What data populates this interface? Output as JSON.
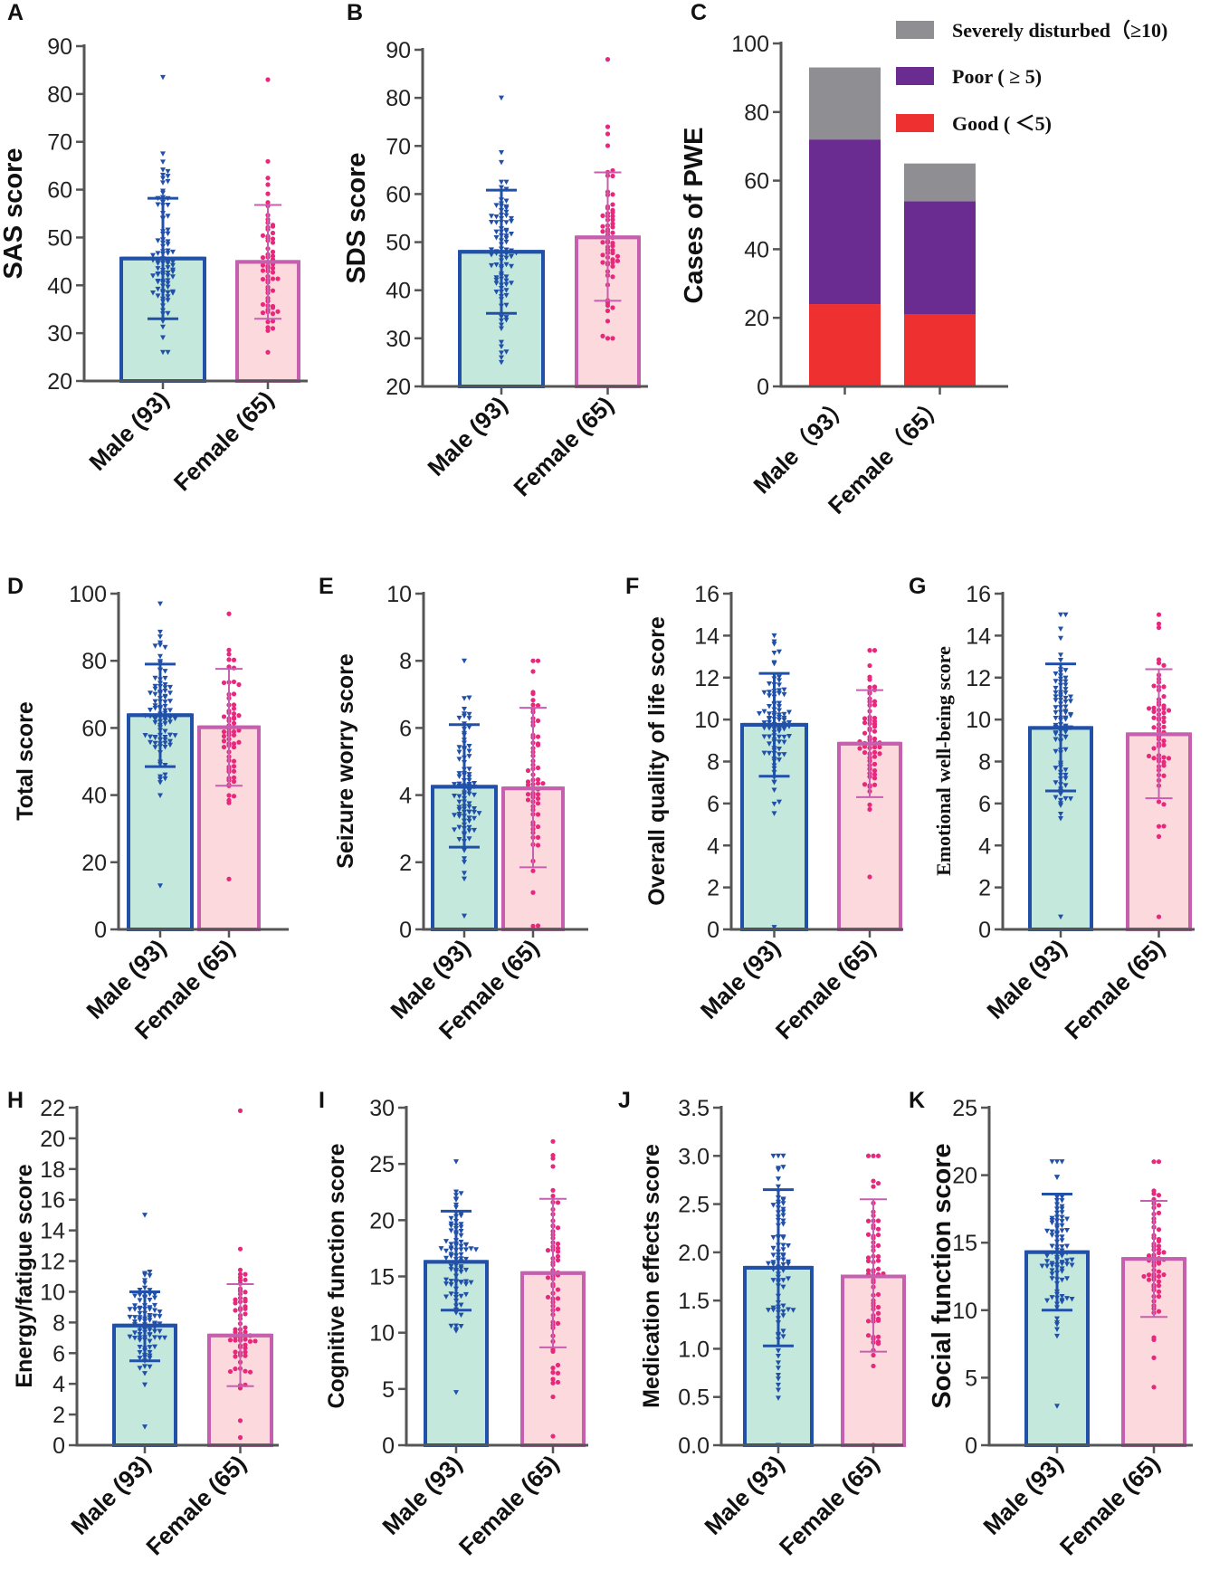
{
  "colors": {
    "male_fill": "#c4e8dc",
    "male_edge": "#2150a8",
    "female_fill": "#fbd9dd",
    "female_edge": "#c65fae",
    "male_dot": "#2150a8",
    "female_dot": "#e8287c",
    "good": "#ee3030",
    "poor": "#6b2c91",
    "severe": "#8f8f93"
  },
  "chart_data": [
    {
      "id": "A",
      "panel_label": "A",
      "type": "bar",
      "ylabel": "SAS score",
      "ylim": [
        20,
        90
      ],
      "yticks": [
        20,
        30,
        40,
        50,
        60,
        70,
        80,
        90
      ],
      "categories": [
        "Male (93)",
        "Female (65)"
      ],
      "values": [
        45.6,
        44.9
      ],
      "sd_low": [
        33.0,
        33.0
      ],
      "sd_high": [
        58.2,
        56.8
      ],
      "scatter": {
        "male": {
          "n": 93,
          "min": 26,
          "max": 83.5
        },
        "female": {
          "n": 65,
          "min": 26,
          "max": 83
        }
      }
    },
    {
      "id": "B",
      "panel_label": "B",
      "type": "bar",
      "ylabel": "SDS score",
      "ylim": [
        20,
        90
      ],
      "yticks": [
        20,
        30,
        40,
        50,
        60,
        70,
        80,
        90
      ],
      "categories": [
        "Male (93)",
        "Female (65)"
      ],
      "values": [
        48.0,
        51.0
      ],
      "sd_low": [
        35.2,
        37.8
      ],
      "sd_high": [
        60.8,
        64.5
      ],
      "scatter": {
        "male": {
          "n": 93,
          "min": 25,
          "max": 80
        },
        "female": {
          "n": 65,
          "min": 30,
          "max": 88
        }
      }
    },
    {
      "id": "C",
      "panel_label": "C",
      "type": "stacked_bar",
      "ylabel": "Cases of PWE",
      "ylim": [
        0,
        100
      ],
      "yticks": [
        0,
        20,
        40,
        60,
        80,
        100
      ],
      "categories": [
        "Male（93）",
        "Female（65）"
      ],
      "series": [
        {
          "name": "Good (＜5)",
          "values": [
            24,
            21
          ]
        },
        {
          "name": "Poor ( ≥ 5)",
          "values": [
            48,
            33
          ]
        },
        {
          "name": "Severely disturbed（≥10)",
          "values": [
            21,
            11
          ]
        }
      ],
      "legend": [
        "Severely disturbed（≥10)",
        "Poor ( ≥ 5)",
        "Good ( ＜5)"
      ]
    },
    {
      "id": "D",
      "panel_label": "D",
      "type": "bar",
      "ylabel": "Total score",
      "ylim": [
        0,
        100
      ],
      "yticks": [
        0,
        20,
        40,
        60,
        80,
        100
      ],
      "categories": [
        "Male (93)",
        "Female (65)"
      ],
      "values": [
        63.8,
        60.2
      ],
      "sd_low": [
        48.5,
        42.8
      ],
      "sd_high": [
        79.0,
        77.6
      ],
      "scatter": {
        "male": {
          "n": 93,
          "min": 13,
          "max": 97
        },
        "female": {
          "n": 65,
          "min": 15,
          "max": 94
        }
      }
    },
    {
      "id": "E",
      "panel_label": "E",
      "type": "bar",
      "ylabel": "Seizure worry score",
      "ylim": [
        0,
        10
      ],
      "yticks": [
        0,
        2,
        4,
        6,
        8,
        10
      ],
      "categories": [
        "Male (93)",
        "Female (65)"
      ],
      "values": [
        4.25,
        4.2
      ],
      "sd_low": [
        2.45,
        1.85
      ],
      "sd_high": [
        6.1,
        6.6
      ],
      "scatter": {
        "male": {
          "n": 93,
          "min": 0.4,
          "max": 8
        },
        "female": {
          "n": 65,
          "min": 0.1,
          "max": 8
        }
      }
    },
    {
      "id": "F",
      "panel_label": "F",
      "type": "bar",
      "ylabel": "Overall quality of life score",
      "ylim": [
        0,
        16
      ],
      "yticks": [
        0,
        2,
        4,
        6,
        8,
        10,
        12,
        14,
        16
      ],
      "categories": [
        "Male (93)",
        "Female (65)"
      ],
      "values": [
        9.75,
        8.85
      ],
      "sd_low": [
        7.3,
        6.3
      ],
      "sd_high": [
        12.2,
        11.4
      ],
      "scatter": {
        "male": {
          "n": 93,
          "min": 0.1,
          "max": 14
        },
        "female": {
          "n": 65,
          "min": 2.5,
          "max": 13.3
        }
      }
    },
    {
      "id": "G",
      "panel_label": "G",
      "type": "bar",
      "ylabel": "Emotional well-being score",
      "ylabel_serif": true,
      "ylim": [
        0,
        16
      ],
      "yticks": [
        0,
        2,
        4,
        6,
        8,
        10,
        12,
        14,
        16
      ],
      "categories": [
        "Male (93)",
        "Female (65)"
      ],
      "values": [
        9.6,
        9.3
      ],
      "sd_low": [
        6.6,
        6.25
      ],
      "sd_high": [
        12.65,
        12.4
      ],
      "scatter": {
        "male": {
          "n": 93,
          "min": 0.6,
          "max": 15
        },
        "female": {
          "n": 65,
          "min": 0.6,
          "max": 15
        }
      }
    },
    {
      "id": "H",
      "panel_label": "H",
      "type": "bar",
      "ylabel": "Energy/fatigue score",
      "ylim": [
        0,
        22
      ],
      "yticks": [
        0,
        2,
        4,
        6,
        8,
        10,
        12,
        14,
        16,
        18,
        20,
        22
      ],
      "categories": [
        "Male (93)",
        "Female (65)"
      ],
      "values": [
        7.8,
        7.15
      ],
      "sd_low": [
        5.5,
        3.85
      ],
      "sd_high": [
        10.0,
        10.5
      ],
      "scatter": {
        "male": {
          "n": 93,
          "min": 1.2,
          "max": 15
        },
        "female": {
          "n": 65,
          "min": 0.5,
          "max": 21.8
        }
      }
    },
    {
      "id": "I",
      "panel_label": "I",
      "type": "bar",
      "ylabel": "Cognitive function score",
      "ylim": [
        0,
        30
      ],
      "yticks": [
        0,
        5,
        10,
        15,
        20,
        25,
        30
      ],
      "categories": [
        "Male (93)",
        "Female (65)"
      ],
      "values": [
        16.3,
        15.3
      ],
      "sd_low": [
        12.0,
        8.7
      ],
      "sd_high": [
        20.8,
        21.9
      ],
      "scatter": {
        "male": {
          "n": 93,
          "min": 4.7,
          "max": 25.2
        },
        "female": {
          "n": 65,
          "min": 0.8,
          "max": 27
        }
      }
    },
    {
      "id": "J",
      "panel_label": "J",
      "type": "bar",
      "ylabel": "Medication effects score",
      "ylim": [
        0,
        3.5
      ],
      "yticks": [
        0.0,
        0.5,
        1.0,
        1.5,
        2.0,
        2.5,
        3.0,
        3.5
      ],
      "tick_decimals": 1,
      "categories": [
        "Male (93)",
        "Female (65)"
      ],
      "values": [
        1.84,
        1.75
      ],
      "sd_low": [
        1.03,
        0.97
      ],
      "sd_high": [
        2.65,
        2.55
      ],
      "scatter": {
        "male": {
          "n": 93,
          "min": 0.0,
          "max": 3.0
        },
        "female": {
          "n": 65,
          "min": 0.0,
          "max": 3.0
        }
      }
    },
    {
      "id": "K",
      "panel_label": "K",
      "type": "bar",
      "ylabel": "Social function score",
      "ylim": [
        0,
        25
      ],
      "yticks": [
        0,
        5,
        10,
        15,
        20,
        25
      ],
      "categories": [
        "Male (93)",
        "Female (65)"
      ],
      "values": [
        14.3,
        13.8
      ],
      "sd_low": [
        10.0,
        9.5
      ],
      "sd_high": [
        18.6,
        18.1
      ],
      "scatter": {
        "male": {
          "n": 93,
          "min": 2.9,
          "max": 21
        },
        "female": {
          "n": 65,
          "min": 4.3,
          "max": 21
        }
      }
    }
  ]
}
